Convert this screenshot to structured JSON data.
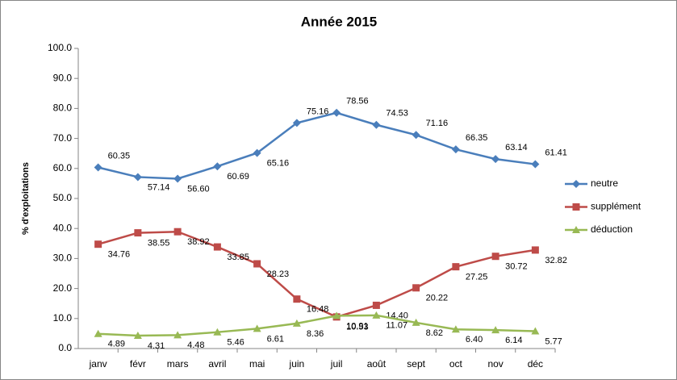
{
  "chart_data": {
    "type": "line",
    "title": "Année 2015",
    "ylabel": "% d'exploitations",
    "categories": [
      "janv",
      "févr",
      "mars",
      "avril",
      "mai",
      "juin",
      "juil",
      "août",
      "sept",
      "oct",
      "nov",
      "déc"
    ],
    "series": [
      {
        "name": "neutre",
        "color": "#4a7ebb",
        "marker": "diamond",
        "values": [
          60.35,
          57.14,
          56.6,
          60.69,
          65.16,
          75.16,
          78.56,
          74.53,
          71.16,
          66.35,
          63.14,
          61.41
        ],
        "value_labels": [
          "60.35",
          "57.14",
          "56.60",
          "60.69",
          "65.16",
          "75.16",
          "78.56",
          "74.53",
          "71.16",
          "66.35",
          "63.14",
          "61.41"
        ]
      },
      {
        "name": "supplément",
        "color": "#be4b48",
        "marker": "square",
        "values": [
          34.76,
          38.55,
          38.92,
          33.85,
          28.23,
          16.48,
          10.53,
          14.4,
          20.22,
          27.25,
          30.72,
          32.82
        ],
        "value_labels": [
          "34.76",
          "38.55",
          "38.92",
          "33.85",
          "28.23",
          "16.48",
          "10.53",
          "14.40",
          "20.22",
          "27.25",
          "30.72",
          "32.82"
        ]
      },
      {
        "name": "déduction",
        "color": "#98b954",
        "marker": "triangle",
        "values": [
          4.89,
          4.31,
          4.48,
          5.46,
          6.61,
          8.36,
          10.91,
          11.07,
          8.62,
          6.4,
          6.14,
          5.77
        ],
        "value_labels": [
          "4.89",
          "4.31",
          "4.48",
          "5.46",
          "6.61",
          "8.36",
          "10.91",
          "11.07",
          "8.62",
          "6.40",
          "6.14",
          "5.77"
        ]
      }
    ],
    "ylim": [
      0,
      100
    ],
    "yticks": [
      {
        "value": 0,
        "label": "0.0"
      },
      {
        "value": 10,
        "label": "10.0"
      },
      {
        "value": 20,
        "label": "20.0"
      },
      {
        "value": 30,
        "label": "30.0"
      },
      {
        "value": 40,
        "label": "40.0"
      },
      {
        "value": 50,
        "label": "50.0"
      },
      {
        "value": 60,
        "label": "60.0"
      },
      {
        "value": 70,
        "label": "70.0"
      },
      {
        "value": 80,
        "label": "80.0"
      },
      {
        "value": 90,
        "label": "90.0"
      },
      {
        "value": 100,
        "label": "100.0"
      }
    ],
    "grid": false,
    "legend": "right"
  }
}
